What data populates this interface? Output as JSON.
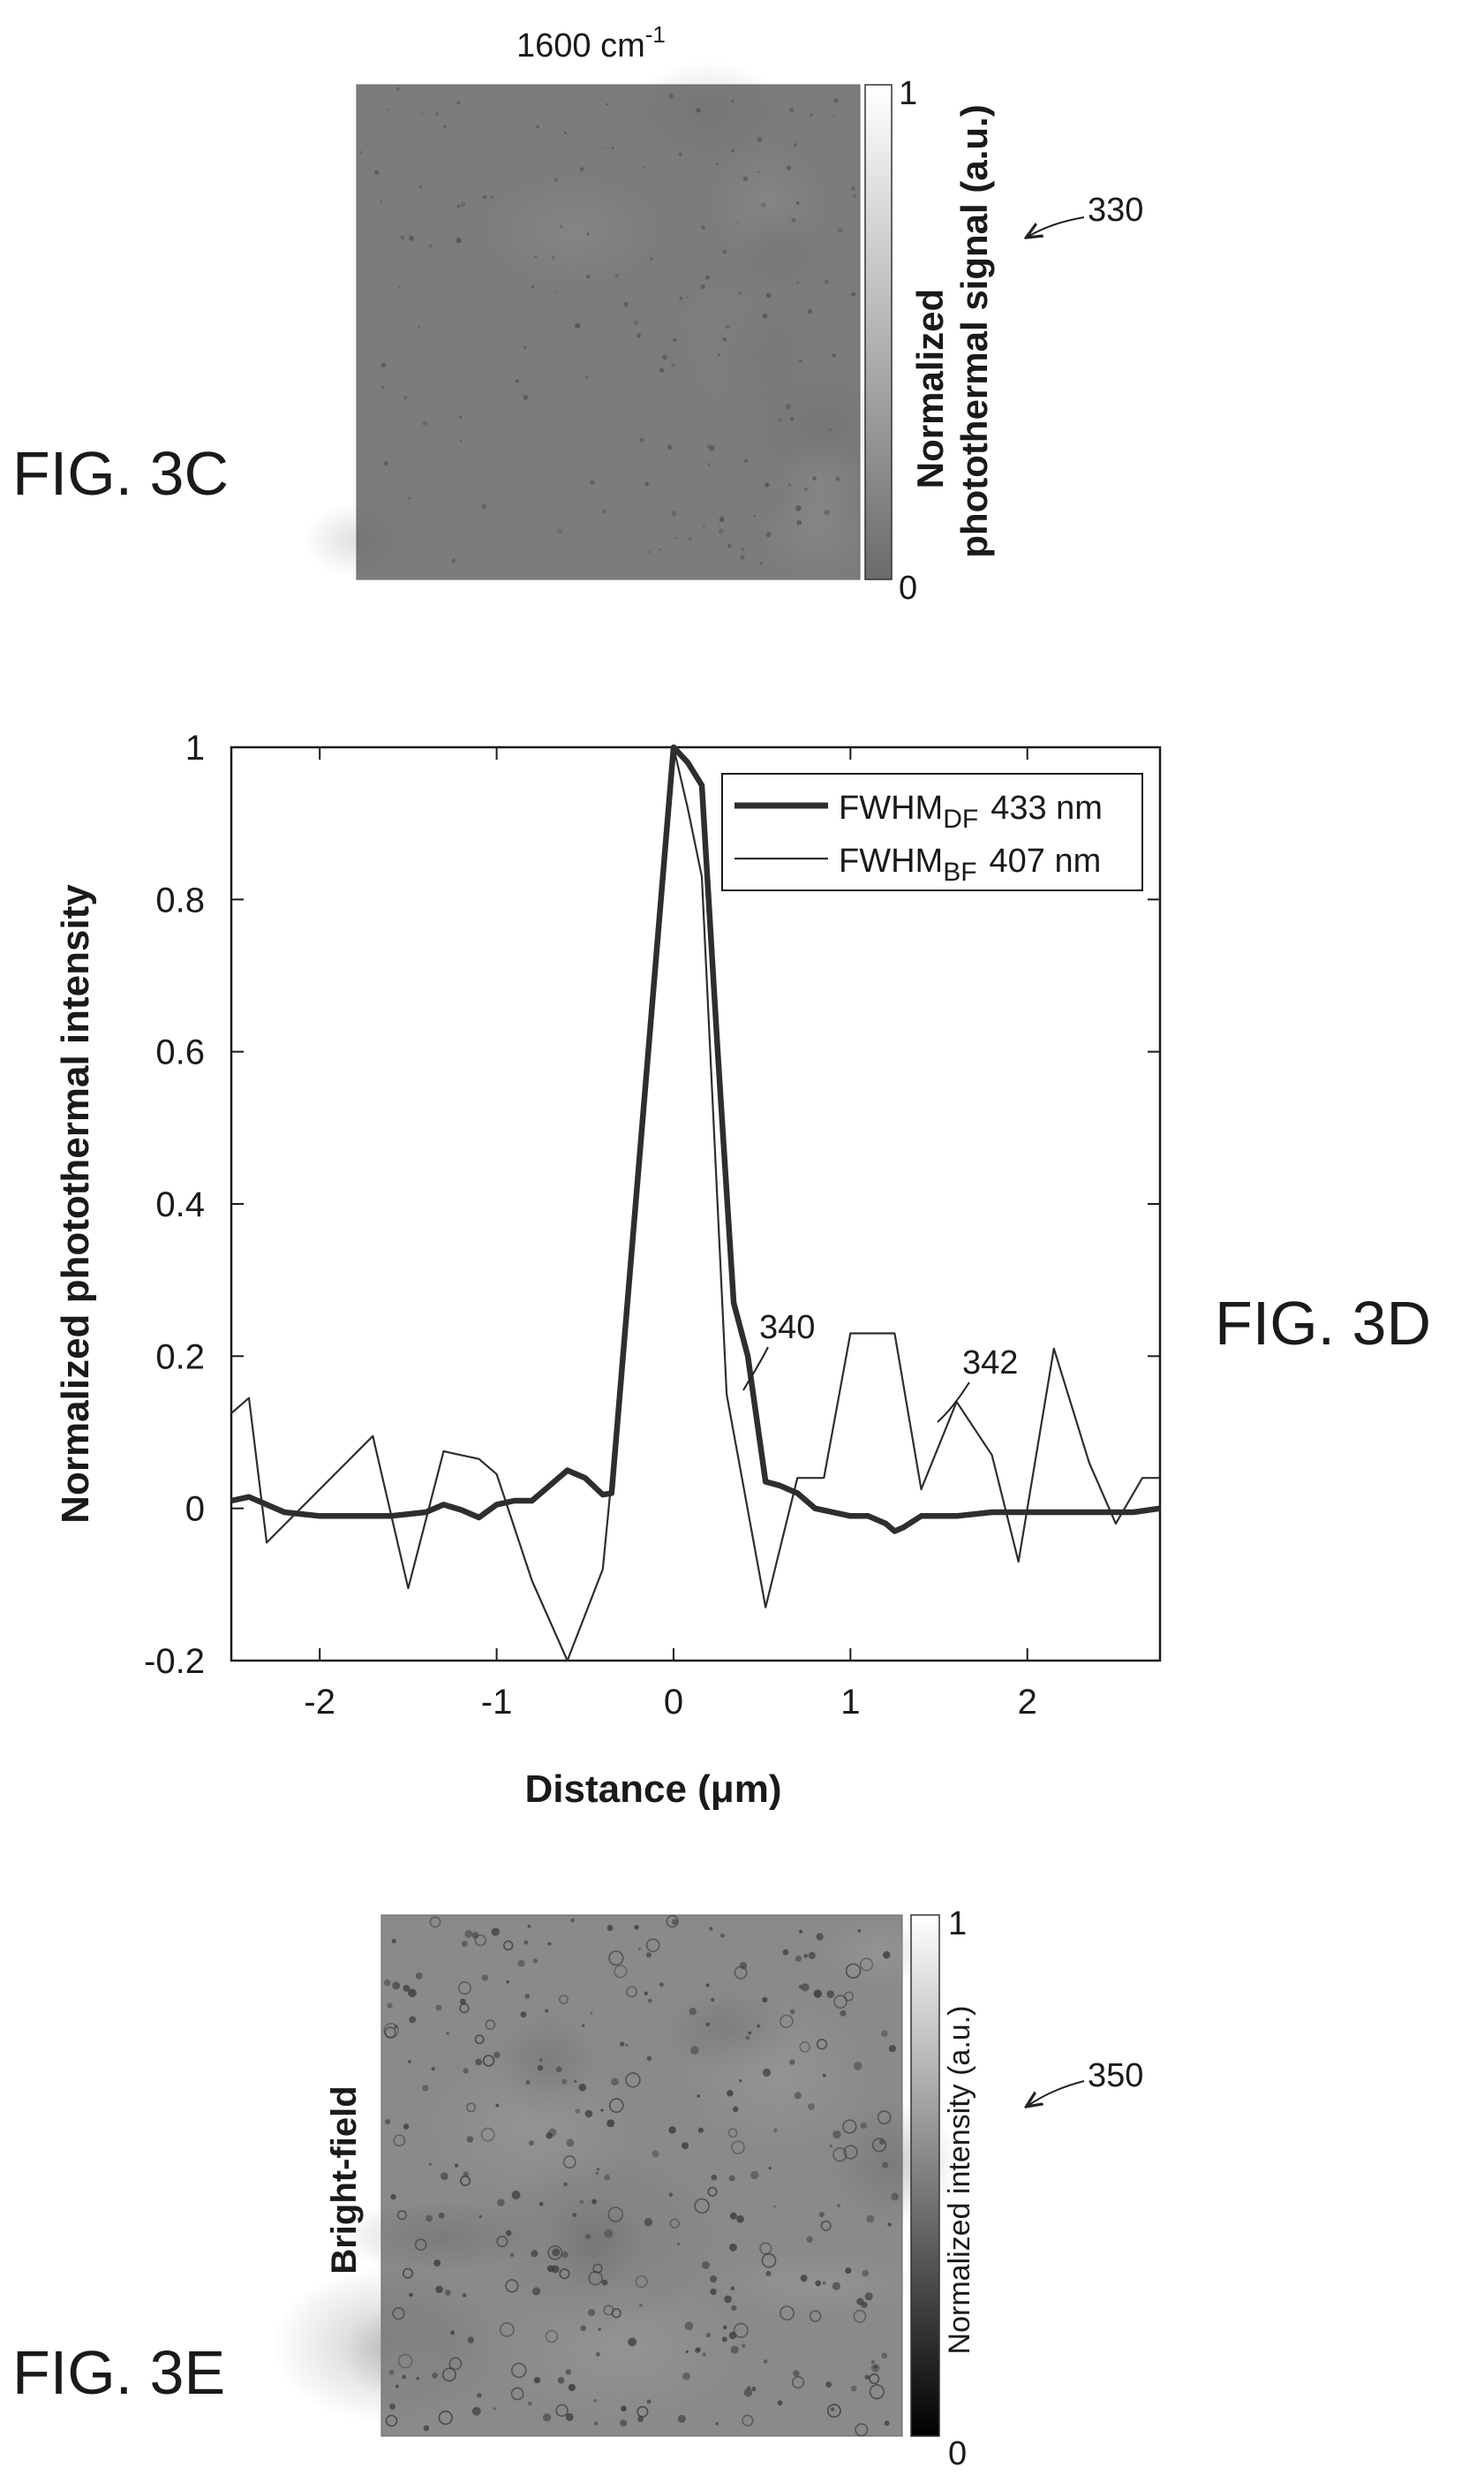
{
  "panel_3c": {
    "figure_label": "FIG. 3C",
    "title": "1600 cm",
    "title_superscript": "-1",
    "colorbar": {
      "max_label": "1",
      "min_label": "0",
      "label_line1": "Normalized",
      "label_line2": "photothermal signal (a.u.)"
    },
    "reference_numeral": "330",
    "image_tone": "#7c7c7c"
  },
  "panel_3d": {
    "figure_label": "FIG. 3D",
    "reference_numerals": {
      "df_curve": "340",
      "bf_curve": "342"
    },
    "legend": [
      {
        "base": "FWHM",
        "sub": "DF",
        "value": "433 nm"
      },
      {
        "base": "FWHM",
        "sub": "BF",
        "value": "407 nm"
      }
    ]
  },
  "panel_3e": {
    "figure_label": "FIG. 3E",
    "row_label": "Bright-field",
    "colorbar": {
      "max_label": "1",
      "min_label": "0",
      "label": "Normalized intensity (a.u.)"
    },
    "reference_numeral": "350",
    "image_tone": "#8a8a8a"
  },
  "chart_data": {
    "type": "line",
    "xlabel": "Distance (μm)",
    "ylabel": "Normalized photothermal intensity",
    "xlim": [
      -2.5,
      2.75
    ],
    "ylim": [
      -0.2,
      1.0
    ],
    "xticks": [
      -2,
      -1,
      0,
      1,
      2
    ],
    "yticks": [
      -0.2,
      0,
      0.2,
      0.4,
      0.6,
      0.8,
      1
    ],
    "ytick_labels": [
      "-0.2",
      "0",
      "0.2",
      "0.4",
      "0.6",
      "0.8",
      "1"
    ],
    "grid": false,
    "legend_position": "top-right",
    "series": [
      {
        "name": "FWHM_DF 433 nm",
        "style": "thick",
        "x": [
          -2.5,
          -2.4,
          -2.3,
          -2.2,
          -2.0,
          -1.8,
          -1.6,
          -1.4,
          -1.3,
          -1.2,
          -1.1,
          -1.0,
          -0.9,
          -0.8,
          -0.7,
          -0.6,
          -0.5,
          -0.4,
          -0.35,
          0.0,
          0.08,
          0.16,
          0.25,
          0.34,
          0.42,
          0.52,
          0.6,
          0.7,
          0.8,
          0.9,
          1.0,
          1.1,
          1.2,
          1.25,
          1.3,
          1.4,
          1.6,
          1.8,
          2.0,
          2.2,
          2.4,
          2.6,
          2.75
        ],
        "y": [
          0.01,
          0.015,
          0.005,
          -0.005,
          -0.01,
          -0.01,
          -0.01,
          -0.005,
          0.005,
          -0.002,
          -0.012,
          0.005,
          0.01,
          0.01,
          0.03,
          0.05,
          0.04,
          0.018,
          0.02,
          1.0,
          0.98,
          0.95,
          0.6,
          0.27,
          0.2,
          0.035,
          0.03,
          0.02,
          0.0,
          -0.005,
          -0.01,
          -0.01,
          -0.02,
          -0.03,
          -0.025,
          -0.01,
          -0.01,
          -0.005,
          -0.005,
          -0.005,
          -0.005,
          -0.005,
          0.0
        ]
      },
      {
        "name": "FWHM_BF 407 nm",
        "style": "thin",
        "x": [
          -2.5,
          -2.4,
          -2.3,
          -1.7,
          -1.5,
          -1.3,
          -1.1,
          -1.0,
          -0.8,
          -0.6,
          -0.4,
          -0.35,
          0.0,
          0.08,
          0.16,
          0.3,
          0.52,
          0.7,
          0.85,
          1.0,
          1.25,
          1.4,
          1.6,
          1.8,
          1.95,
          2.15,
          2.35,
          2.5,
          2.65,
          2.75
        ],
        "y": [
          0.125,
          0.145,
          -0.045,
          0.095,
          -0.105,
          0.075,
          0.065,
          0.045,
          -0.095,
          -0.2,
          -0.08,
          0.04,
          1.0,
          0.92,
          0.83,
          0.15,
          -0.13,
          0.04,
          0.04,
          0.23,
          0.23,
          0.025,
          0.14,
          0.07,
          -0.07,
          0.21,
          0.06,
          -0.02,
          0.04,
          0.04
        ]
      }
    ]
  }
}
